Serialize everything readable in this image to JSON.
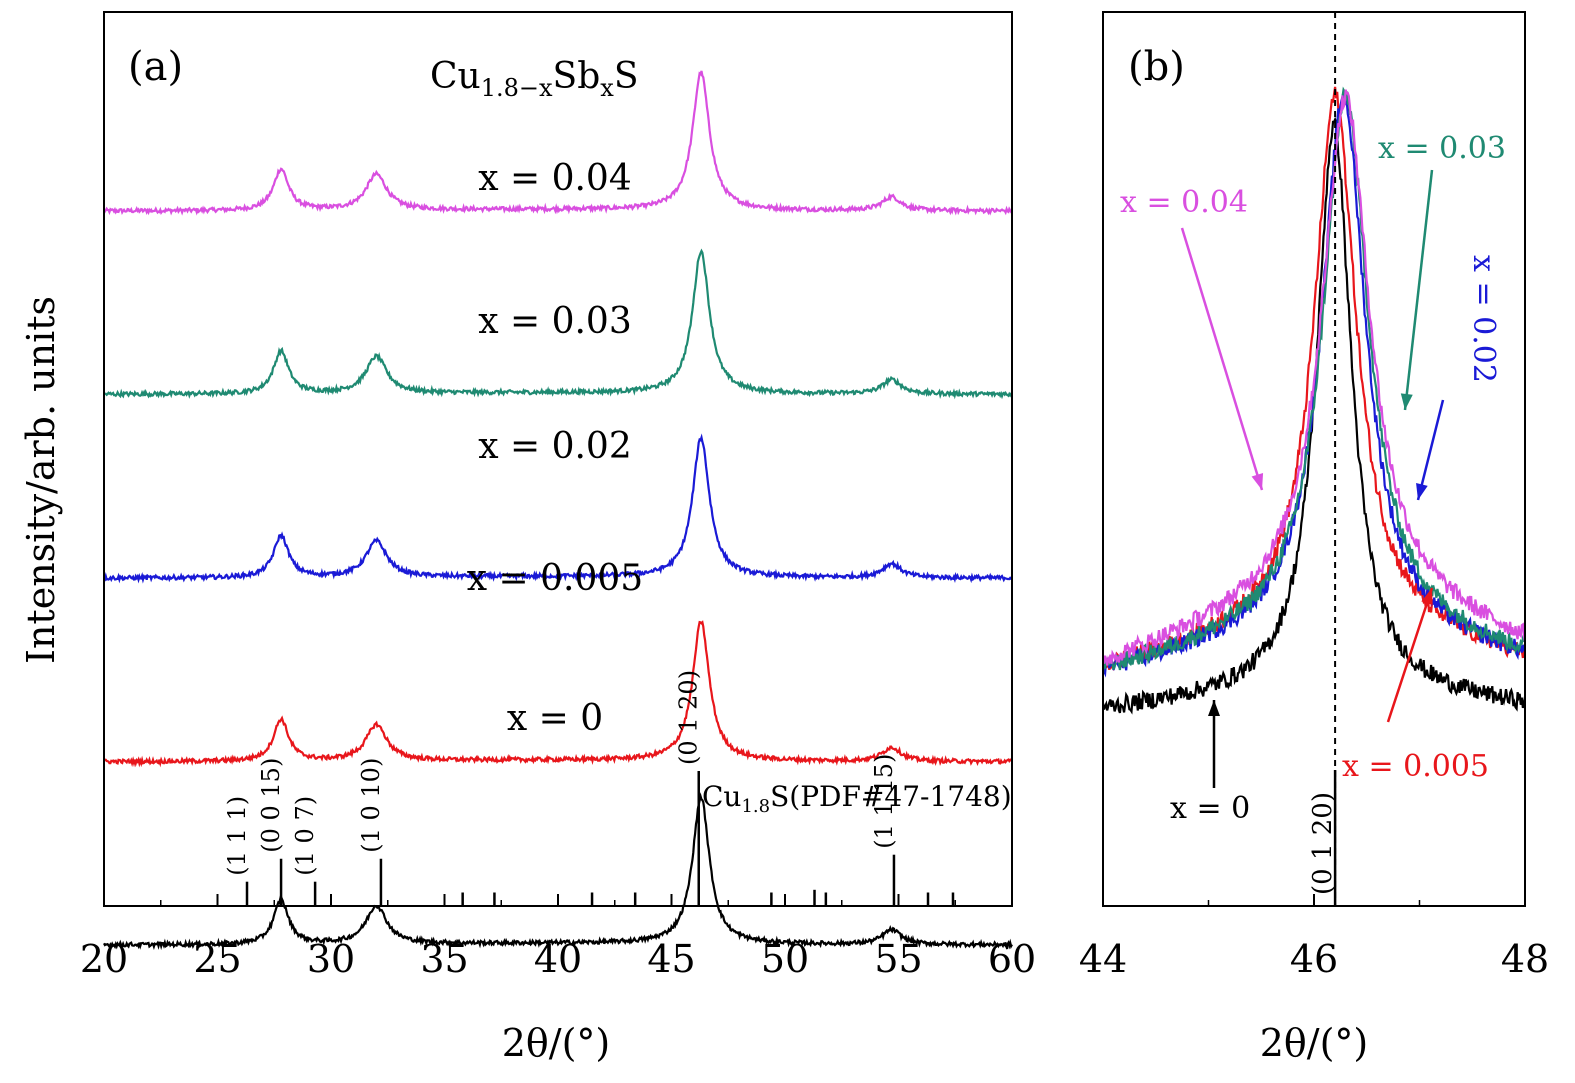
{
  "chart_data": [
    {
      "panel_label": "(a)",
      "type": "line",
      "title": "Cu1.8−xSbxS",
      "title_parts": {
        "base": "Cu",
        "sub1": "1.8−x",
        "mid": "Sb",
        "sub2": "x",
        "end": "S"
      },
      "xlabel": "2θ/(°)",
      "ylabel": "Intensity/arb. units",
      "xlim": [
        20,
        60
      ],
      "xticks": [
        "20",
        "25",
        "30",
        "35",
        "40",
        "45",
        "50",
        "55",
        "60"
      ],
      "xtick_values": [
        20,
        25,
        30,
        35,
        40,
        45,
        50,
        55,
        60
      ],
      "peaks": [
        {
          "center": 27.8,
          "height": 0.3,
          "width": 0.4
        },
        {
          "center": 32.0,
          "height": 0.26,
          "width": 0.55
        },
        {
          "center": 46.3,
          "height": 1.0,
          "width": 0.45
        },
        {
          "center": 54.7,
          "height": 0.1,
          "width": 0.5
        }
      ],
      "series": [
        {
          "label": "x = 0.04",
          "color": "#d94fe0",
          "baseline": 0.855,
          "scale": 0.92
        },
        {
          "label": "x = 0.03",
          "color": "#1f8a72",
          "baseline": 0.585,
          "scale": 0.95
        },
        {
          "label": "x = 0.02",
          "color": "#1a1ad6",
          "baseline": 0.315,
          "scale": 0.93
        },
        {
          "label": "x = 0.005",
          "color": "#e8161b",
          "baseline": 0.045,
          "scale": 0.93
        },
        {
          "label": "x = 0",
          "color": "#000000",
          "baseline": -0.225,
          "scale": 0.98
        }
      ],
      "reference": {
        "label": "Cu1.8S(PDF#47-1748)",
        "label_parts": {
          "base": "Cu",
          "sub": "1.8",
          "rest": "S(PDF#47-1748)"
        },
        "sticks": [
          {
            "x": 26.3,
            "rel": 0.18,
            "hkl": "(1 1 1)"
          },
          {
            "x": 27.8,
            "rel": 0.35,
            "hkl": "(0 0 15)"
          },
          {
            "x": 29.3,
            "rel": 0.18,
            "hkl": "(1 0 7)"
          },
          {
            "x": 32.2,
            "rel": 0.35,
            "hkl": "(1 0 10)"
          },
          {
            "x": 35.8,
            "rel": 0.1,
            "hkl": ""
          },
          {
            "x": 37.2,
            "rel": 0.1,
            "hkl": ""
          },
          {
            "x": 41.5,
            "rel": 0.1,
            "hkl": ""
          },
          {
            "x": 43.4,
            "rel": 0.1,
            "hkl": ""
          },
          {
            "x": 46.2,
            "rel": 1.0,
            "hkl": "(0 1 20)"
          },
          {
            "x": 49.4,
            "rel": 0.1,
            "hkl": ""
          },
          {
            "x": 51.3,
            "rel": 0.12,
            "hkl": ""
          },
          {
            "x": 51.8,
            "rel": 0.1,
            "hkl": ""
          },
          {
            "x": 54.8,
            "rel": 0.38,
            "hkl": "(1 1 15)"
          },
          {
            "x": 56.3,
            "rel": 0.1,
            "hkl": ""
          },
          {
            "x": 57.4,
            "rel": 0.1,
            "hkl": ""
          }
        ]
      }
    },
    {
      "panel_label": "(b)",
      "type": "line",
      "xlabel": "2θ/(°)",
      "xlim": [
        44,
        48
      ],
      "xticks": [
        "44",
        "46",
        "48"
      ],
      "xtick_values": [
        44,
        46,
        48
      ],
      "reference_line": {
        "x": 46.2,
        "hkl": "(0 1 20)"
      },
      "series": [
        {
          "label": "x = 0",
          "color": "#000000",
          "center": 46.19,
          "hwhm": 0.2,
          "tail": 0.05
        },
        {
          "label": "x = 0.005",
          "color": "#e8161b",
          "center": 46.2,
          "hwhm": 0.24,
          "tail": 0.12
        },
        {
          "label": "x = 0.02",
          "color": "#1a1ad6",
          "center": 46.28,
          "hwhm": 0.25,
          "tail": 0.11
        },
        {
          "label": "x = 0.03",
          "color": "#1f8a72",
          "center": 46.3,
          "hwhm": 0.26,
          "tail": 0.12
        },
        {
          "label": "x = 0.04",
          "color": "#d94fe0",
          "center": 46.3,
          "hwhm": 0.27,
          "tail": 0.17
        }
      ]
    }
  ]
}
